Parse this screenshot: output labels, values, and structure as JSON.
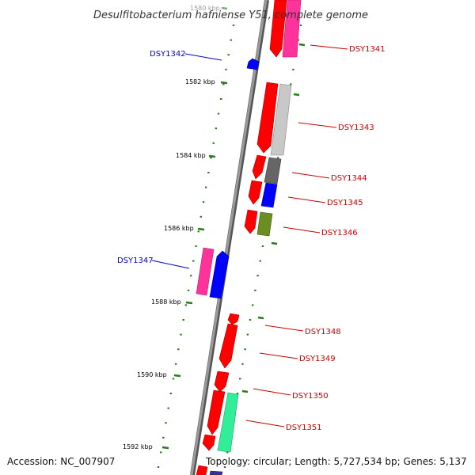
{
  "title": "Desulfitobacterium hafniense Y51, complete genome",
  "footer": {
    "accession": "Accession: NC_007907",
    "summary": "Topology: circular; Length: 5,727,534 bp; Genes: 5,137"
  },
  "colors": {
    "backbone": "#888888",
    "tick": "#2a7a1e",
    "label_forward": "#0000cc",
    "label_reverse": "#cc0000",
    "red": "#ff0000",
    "pink": "#ff3399",
    "grey_light": "#c8c8c8",
    "grey_dark": "#666666",
    "blue": "#0000ff",
    "olive": "#6b8e23",
    "teal": "#33ee99",
    "navy": "#333399"
  },
  "kbp_labels": [
    "1580 kbp",
    "1582 kbp",
    "1584 kbp",
    "1586 kbp",
    "1588 kbp",
    "1590 kbp",
    "1592 kbp"
  ],
  "gene_labels": [
    {
      "text": "DSY1341",
      "side": "right"
    },
    {
      "text": "DSY1342",
      "side": "left"
    },
    {
      "text": "DSY1343",
      "side": "right"
    },
    {
      "text": "DSY1344",
      "side": "right"
    },
    {
      "text": "DSY1345",
      "side": "right"
    },
    {
      "text": "DSY1346",
      "side": "right"
    },
    {
      "text": "DSY1347",
      "side": "left"
    },
    {
      "text": "DSY1348",
      "side": "right"
    },
    {
      "text": "DSY1349",
      "side": "right"
    },
    {
      "text": "DSY1350",
      "side": "right"
    },
    {
      "text": "DSY1351",
      "side": "right"
    }
  ]
}
